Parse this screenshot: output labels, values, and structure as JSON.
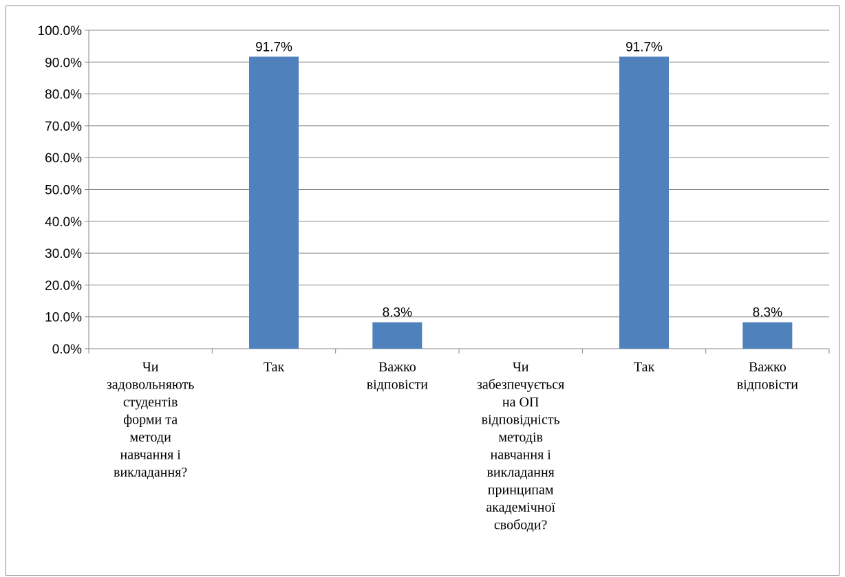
{
  "chart_data": {
    "type": "bar",
    "categories": [
      "Чи задовольняють студентів форми та методи навчання і викладання?",
      "Так",
      "Важко відповісти",
      "Чи забезпечується на ОП відповідність методів навчання і викладання принципам академічної свободи?",
      "Так",
      "Важко відповісти"
    ],
    "category_lines": [
      [
        "Чи",
        "задовольняють",
        "студентів",
        "форми та",
        "методи",
        "навчання і",
        "викладання?"
      ],
      [
        "Так"
      ],
      [
        "Важко",
        "відповісти"
      ],
      [
        "Чи",
        "забезпечується",
        "на ОП",
        "відповідність",
        "методів",
        "навчання і",
        "викладання",
        "принципам",
        "академічної",
        "свободи?"
      ],
      [
        "Так"
      ],
      [
        "Важко",
        "відповісти"
      ]
    ],
    "values": [
      null,
      91.7,
      8.3,
      null,
      91.7,
      8.3
    ],
    "data_labels": [
      "",
      "91.7%",
      "8.3%",
      "",
      "91.7%",
      "8.3%"
    ],
    "y_ticks": [
      "0.0%",
      "10.0%",
      "20.0%",
      "30.0%",
      "40.0%",
      "50.0%",
      "60.0%",
      "70.0%",
      "80.0%",
      "90.0%",
      "100.0%"
    ],
    "ylim": [
      0,
      100
    ],
    "grid": true,
    "legend": "none",
    "bar_color": "#4f81bd",
    "grid_color": "#868686"
  }
}
